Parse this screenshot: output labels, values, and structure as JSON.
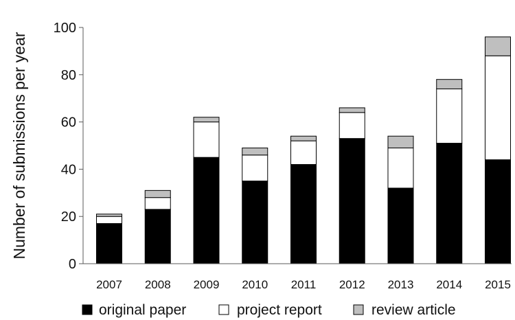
{
  "chart_data": {
    "type": "bar",
    "stacked": true,
    "title": "",
    "xlabel": "",
    "ylabel": "Number of submissions per year",
    "ylim": [
      0,
      100
    ],
    "yticks": [
      0,
      20,
      40,
      60,
      80,
      100
    ],
    "grid": false,
    "legend_position": "bottom",
    "categories": [
      "2007",
      "2008",
      "2009",
      "2010",
      "2011",
      "2012",
      "2013",
      "2014",
      "2015"
    ],
    "series": [
      {
        "name": "original paper",
        "color": "#000000",
        "values": [
          17,
          23,
          45,
          35,
          42,
          53,
          32,
          51,
          44
        ]
      },
      {
        "name": "project report",
        "color": "#ffffff",
        "values": [
          3,
          5,
          15,
          11,
          10,
          11,
          17,
          23,
          44
        ]
      },
      {
        "name": "review article",
        "color": "#bfbfbf",
        "values": [
          1,
          3,
          2,
          3,
          2,
          2,
          5,
          4,
          8
        ]
      }
    ]
  }
}
